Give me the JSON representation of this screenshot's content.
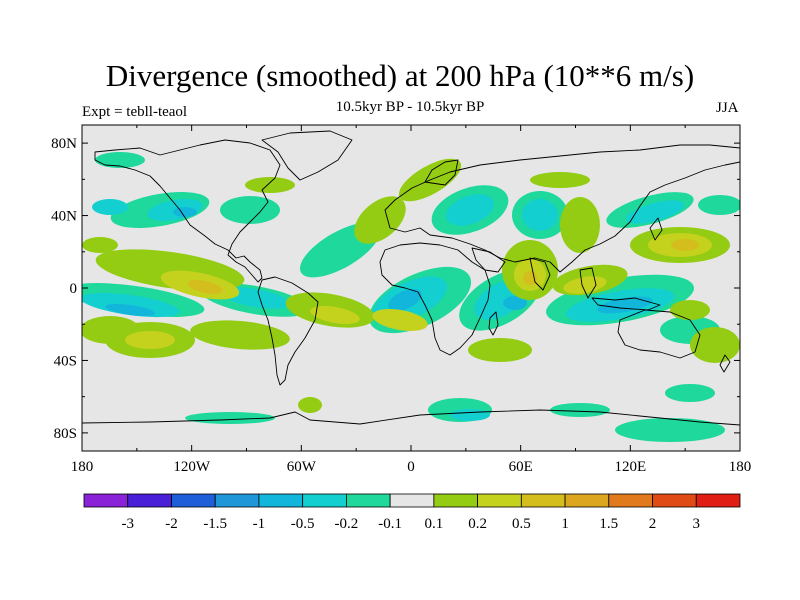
{
  "title": "Divergence (smoothed) at 200 hPa (10**6 m/s)",
  "experiment": "Expt = tebll-teaol",
  "period": "10.5kyr BP - 10.5kyr BP",
  "season": "JJA",
  "lat_labels": [
    "80N",
    "40N",
    "0",
    "40S",
    "80S"
  ],
  "lat_values": [
    80,
    40,
    0,
    -40,
    -80
  ],
  "lon_labels": [
    "180",
    "120W",
    "60W",
    "0",
    "60E",
    "120E",
    "180"
  ],
  "lon_values": [
    -180,
    -120,
    -60,
    0,
    60,
    120,
    180
  ],
  "colorbar": {
    "colors": [
      "#8a22d8",
      "#4a1fd8",
      "#1e5ed8",
      "#1e96d8",
      "#12b6da",
      "#14cfd0",
      "#1ed89c",
      "#e6e6e6",
      "#94cc14",
      "#c4d21e",
      "#d4be1e",
      "#dca61e",
      "#e07a1c",
      "#e04a14",
      "#e01e14"
    ],
    "labels": [
      "-3",
      "-2",
      "-1.5",
      "-1",
      "-0.5",
      "-0.2",
      "-0.1",
      "0.1",
      "0.2",
      "0.5",
      "1",
      "1.5",
      "2",
      "3"
    ]
  },
  "field_colors": {
    "background": "#e6e6e6",
    "neg_strong": "#12b6da",
    "neg_mid": "#14cfd0",
    "neg_weak": "#1ed89c",
    "neg_deep": "#1e96d8",
    "pos_weak": "#94cc14",
    "pos_mid": "#c4d21e",
    "pos_strong": "#d4be1e",
    "pos_deep": "#dca61e"
  }
}
